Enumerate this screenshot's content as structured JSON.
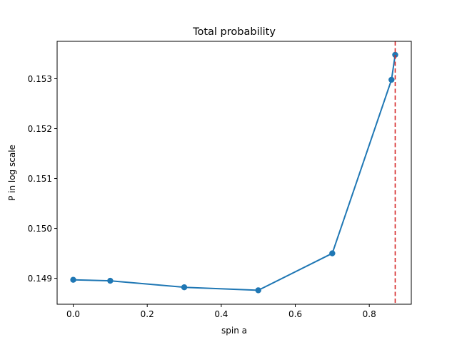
{
  "chart_data": {
    "type": "line",
    "title": "Total probability",
    "xlabel": "spin a",
    "ylabel": "P in log scale",
    "xlim": [
      -0.0435,
      0.9135
    ],
    "ylim": [
      0.14848,
      0.15375
    ],
    "xticks": [
      0.0,
      0.2,
      0.4,
      0.6,
      0.8
    ],
    "xtick_labels": [
      "0.0",
      "0.2",
      "0.4",
      "0.6",
      "0.8"
    ],
    "yticks": [
      0.149,
      0.15,
      0.151,
      0.152,
      0.153
    ],
    "ytick_labels": [
      "0.149",
      "0.150",
      "0.151",
      "0.152",
      "0.153"
    ],
    "grid": false,
    "series": [
      {
        "x": [
          0.0,
          0.1,
          0.3,
          0.5,
          0.7,
          0.86,
          0.87
        ],
        "y": [
          0.14897,
          0.14895,
          0.14882,
          0.14876,
          0.1495,
          0.15298,
          0.15348
        ],
        "color": "#1f77b4",
        "marker": "circle"
      }
    ],
    "vlines": [
      {
        "x": 0.87,
        "color": "#d62728",
        "style": "dashed"
      }
    ]
  }
}
